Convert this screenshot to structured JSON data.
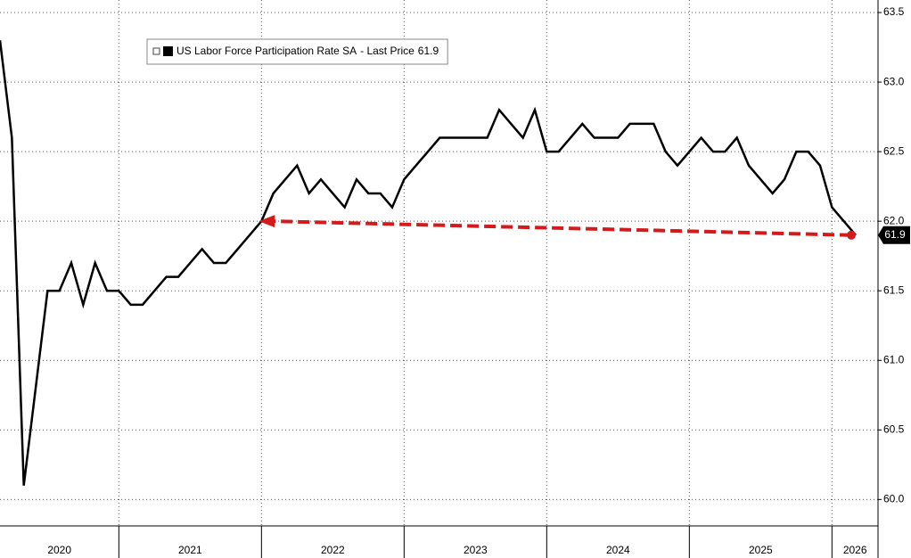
{
  "chart_data": {
    "type": "line",
    "categories": [
      null,
      null,
      null,
      null,
      null,
      null,
      null,
      null,
      null,
      null,
      null,
      null,
      null,
      null,
      null,
      null,
      null,
      null,
      null,
      null,
      null,
      null,
      null,
      null,
      null,
      null,
      null,
      null,
      null,
      null,
      null,
      null,
      null,
      null,
      null,
      null,
      null,
      null,
      null,
      null,
      null,
      null,
      null,
      null,
      null,
      null,
      null,
      null,
      null,
      null,
      null,
      null,
      null,
      null,
      null,
      null,
      null,
      null,
      null,
      null,
      null,
      null,
      null,
      null,
      null,
      null,
      null,
      null,
      null,
      null,
      null,
      null,
      null
    ],
    "year_labels": [
      "2020",
      "2021",
      "2022",
      "2023",
      "2024",
      "2025",
      "2026"
    ],
    "series": [
      {
        "name": "US Labor Force Participation Rate SA",
        "color": "#000000",
        "values": [
          63.3,
          62.6,
          60.1,
          60.8,
          61.5,
          61.5,
          61.7,
          61.4,
          61.7,
          61.5,
          61.5,
          61.4,
          61.4,
          61.5,
          61.6,
          61.6,
          61.7,
          61.8,
          61.7,
          61.7,
          61.8,
          61.9,
          62.0,
          62.2,
          62.3,
          62.4,
          62.2,
          62.3,
          62.2,
          62.1,
          62.3,
          62.2,
          62.2,
          62.1,
          62.3,
          62.4,
          62.5,
          62.6,
          62.6,
          62.6,
          62.6,
          62.6,
          62.8,
          62.7,
          62.6,
          62.8,
          62.5,
          62.5,
          62.6,
          62.7,
          62.6,
          62.6,
          62.6,
          62.7,
          62.7,
          62.7,
          62.5,
          62.4,
          62.5,
          62.6,
          62.5,
          62.5,
          62.6,
          62.4,
          62.3,
          62.2,
          62.3,
          62.5,
          62.5,
          62.4,
          62.1,
          62.0,
          61.9
        ]
      }
    ],
    "last_price_label": "- Last Price",
    "annotation_color": "#d41a1a",
    "ylim": [
      59.81,
      63.59
    ],
    "yticks": [
      {
        "value": 60,
        "label": "60.0"
      },
      60.5,
      {
        "value": 61,
        "label": "61.0"
      },
      61.5,
      {
        "value": 62,
        "label": "62.0"
      },
      62.5,
      {
        "value": 63,
        "label": "63.0"
      },
      63.5
    ],
    "grid": true
  }
}
